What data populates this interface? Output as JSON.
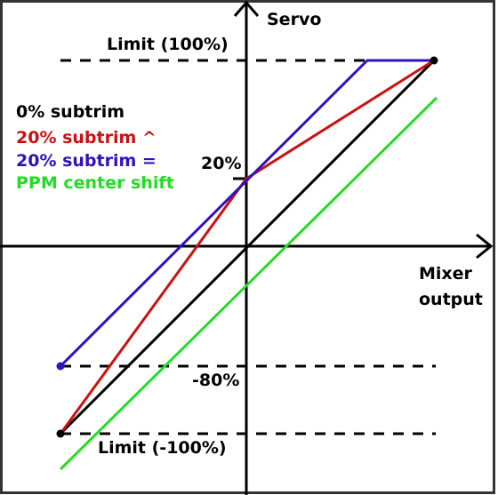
{
  "axes": {
    "y_label": "Servo",
    "x_label_line1": "Mixer",
    "x_label_line2": "output"
  },
  "levels": {
    "limit_top": "Limit (100%)",
    "limit_bottom": "Limit (-100%)",
    "tick_20": "20%",
    "tick_minus80": "-80%"
  },
  "legend": [
    {
      "text": "0% subtrim",
      "color": "#000000"
    },
    {
      "text": "20% subtrim ^",
      "color": "#cc1111"
    },
    {
      "text": "20% subtrim =",
      "color": "#3311bb"
    },
    {
      "text": "PPM center shift",
      "color": "#22dd22"
    }
  ],
  "colors": {
    "border": "#333333",
    "axis": "#000000",
    "zero_subtrim": "#000000",
    "subtrim_caret": "#cc1111",
    "subtrim_equal": "#3311bb",
    "ppm_shift": "#22dd22",
    "dashed": "#000000"
  }
}
